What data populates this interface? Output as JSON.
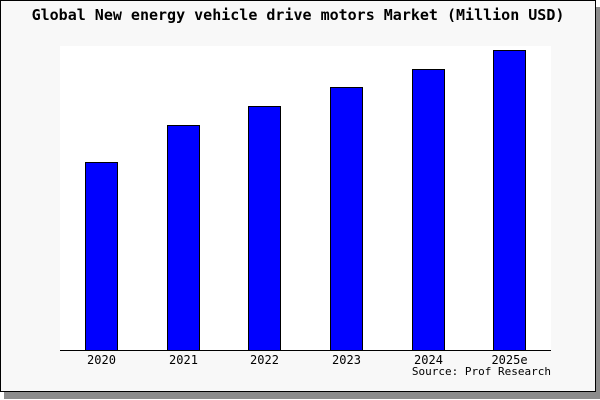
{
  "chart_data": {
    "type": "bar",
    "title": "Global New energy vehicle drive motors Market (Million USD)",
    "categories": [
      "2020",
      "2021",
      "2022",
      "2023",
      "2024",
      "2025e"
    ],
    "values": [
      188,
      225,
      244,
      263,
      281,
      300
    ],
    "values_note": "y-axis unlabeled in chart; values are relative bar heights (px), 2025e tallest",
    "values_relative_pct_of_2025e": [
      62.7,
      74.9,
      81.2,
      87.6,
      93.7,
      100
    ],
    "xlabel": "",
    "ylabel": "",
    "grid": false,
    "legend_position": "none",
    "bar_color": "#0000ff",
    "bar_border_color": "#000000",
    "plot_background": "#ffffff",
    "figure_background": "#f8f8f8",
    "frame_border_color": "#000000",
    "shadow_color": "#8c8c8c"
  },
  "footer": {
    "source": "Source: Prof Research"
  }
}
